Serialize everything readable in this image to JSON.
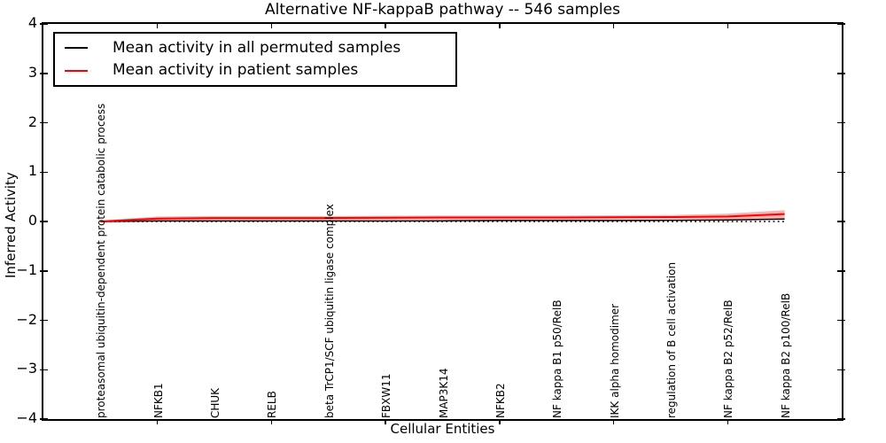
{
  "figure": {
    "background": "#ffffff"
  },
  "header": {
    "title": "Alternative NF-kappaB pathway -- 546 samples"
  },
  "legend": {
    "position": "upper left",
    "items": [
      {
        "label": "Mean activity in all permuted samples",
        "color": "#000000"
      },
      {
        "label": "Mean activity in patient samples",
        "color": "#ff0000"
      }
    ]
  },
  "chart_data": {
    "type": "line",
    "title": "Alternative NF-kappaB pathway -- 546 samples",
    "xlabel": "Cellular Entities",
    "ylabel": "Inferred Activity",
    "xlim": [
      0,
      14
    ],
    "ylim": [
      -4,
      4
    ],
    "yticks": [
      4,
      3,
      2,
      1,
      0,
      -1,
      -2,
      -3,
      -4
    ],
    "x": [
      1,
      2,
      3,
      4,
      5,
      6,
      7,
      8,
      9,
      10,
      11,
      12,
      13
    ],
    "categories": [
      "proteasomal ubiquitin-dependent protein catabolic process",
      "NFKB1",
      "CHUK",
      "RELB",
      "beta TrCP1/SCF ubiquitin ligase complex",
      "FBXW11",
      "MAP3K14",
      "NFKB2",
      "NF kappa B1 p50/RelB",
      "IKK alpha homodimer",
      "regulation of B cell activation",
      "NF kappa B2 p52/RelB",
      "NF kappa B2 p100/RelB"
    ],
    "xtick_marks_at": [
      2,
      4,
      6,
      8,
      10,
      12
    ],
    "grid": false,
    "zero_line": {
      "y": 0,
      "style": "dotted",
      "color": "#000000"
    },
    "series": [
      {
        "name": "Mean activity in all permuted samples",
        "color": "#000000",
        "values": [
          0.0,
          0.01,
          0.01,
          0.01,
          0.01,
          0.01,
          0.015,
          0.02,
          0.02,
          0.02,
          0.025,
          0.03,
          0.05
        ]
      },
      {
        "name": "Mean activity in patient samples",
        "color": "#ff0000",
        "values": [
          0.0,
          0.06,
          0.07,
          0.07,
          0.07,
          0.075,
          0.08,
          0.08,
          0.08,
          0.085,
          0.09,
          0.1,
          0.15
        ],
        "band": {
          "fill": "rgba(255,0,0,0.3)",
          "upper": [
            0.02,
            0.1,
            0.11,
            0.11,
            0.11,
            0.115,
            0.12,
            0.12,
            0.12,
            0.125,
            0.13,
            0.16,
            0.23
          ],
          "lower": [
            -0.02,
            0.02,
            0.03,
            0.03,
            0.03,
            0.035,
            0.04,
            0.04,
            0.04,
            0.045,
            0.05,
            0.05,
            0.06
          ]
        }
      }
    ]
  }
}
